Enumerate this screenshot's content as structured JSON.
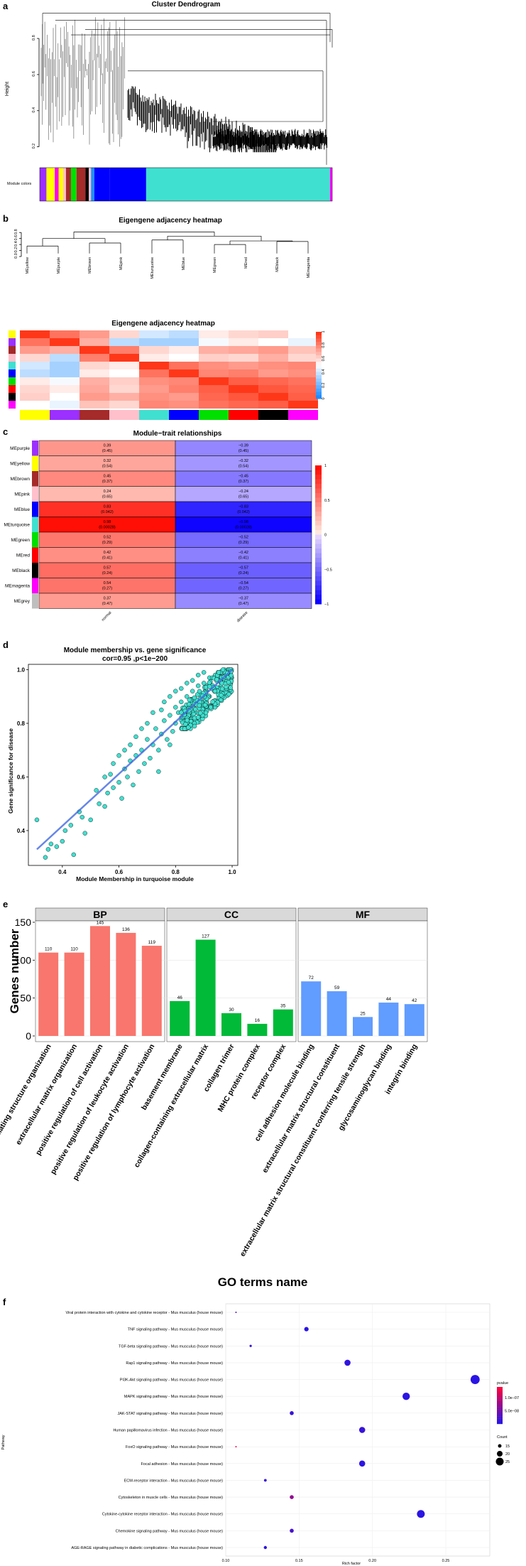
{
  "figure": {
    "panels": [
      "a",
      "b",
      "c",
      "d",
      "e",
      "f"
    ]
  },
  "chart_data": [
    {
      "id": "a",
      "type": "dendrogram",
      "title": "Cluster Dendrogram",
      "ylabel": "Height",
      "ylim": [
        0.1,
        0.95
      ],
      "yticks": [
        "0.2",
        "0.4",
        "0.6",
        "0.8"
      ],
      "ytick_values": [
        0.2,
        0.4,
        0.6,
        0.8
      ],
      "color_bar_label": "Module colors",
      "module_segments": [
        {
          "color": "#9b30ff",
          "weight": 1.2
        },
        {
          "color": "#ffff00",
          "weight": 1.5
        },
        {
          "color": "#ff00ff",
          "weight": 0.7
        },
        {
          "color": "#ffff00",
          "weight": 0.8
        },
        {
          "color": "#ffc0cb",
          "weight": 0.5
        },
        {
          "color": "#a52a2a",
          "weight": 0.9
        },
        {
          "color": "#00e000",
          "weight": 1.0
        },
        {
          "color": "#a52a2a",
          "weight": 1.6
        },
        {
          "color": "#000000",
          "weight": 0.6
        },
        {
          "color": "#ffc0cb",
          "weight": 0.4
        },
        {
          "color": "#1e90ff",
          "weight": 0.6
        },
        {
          "color": "#0000ff",
          "weight": 2.8
        },
        {
          "color": "#0000ff",
          "weight": 6.5
        },
        {
          "color": "#40e0d0",
          "weight": 33.0
        },
        {
          "color": "#ff00ff",
          "weight": 0.4
        }
      ]
    },
    {
      "id": "b",
      "type": "dendrogram+heatmap",
      "title": "Eigengene adjacency heatmap",
      "heatmap_title": "Eigengene adjacency heatmap",
      "yticks": [
        "0.0",
        "0.2",
        "0.4",
        "0.6",
        "0.8"
      ],
      "ytick_values": [
        0,
        0.2,
        0.4,
        0.6,
        0.8
      ],
      "leaves": [
        "MEyellow",
        "MEpurple",
        "MEbrown",
        "MEpink",
        "MEturquoise",
        "MEblue",
        "MEgreen",
        "MEred",
        "MEblack",
        "MEmagenta"
      ],
      "leaf_colors": [
        "#ffff00",
        "#9b30ff",
        "#a52a2a",
        "#ffc0cb",
        "#40e0d0",
        "#0000ff",
        "#00e000",
        "#ff0000",
        "#000000",
        "#ff00ff"
      ],
      "legend_ticks": [
        "1",
        "0.8",
        "0.6",
        "0.4",
        "0.2",
        "0"
      ],
      "legend_tick_values": [
        1,
        0.8,
        0.6,
        0.4,
        0.2,
        0
      ],
      "matrix": [
        [
          1.0,
          0.85,
          0.75,
          0.6,
          0.4,
          0.35,
          0.55,
          0.6,
          0.62,
          0.5
        ],
        [
          0.85,
          1.0,
          0.7,
          0.35,
          0.3,
          0.3,
          0.48,
          0.55,
          0.5,
          0.45
        ],
        [
          0.75,
          0.7,
          1.0,
          0.82,
          0.6,
          0.55,
          0.7,
          0.72,
          0.75,
          0.65
        ],
        [
          0.6,
          0.35,
          0.82,
          1.0,
          0.55,
          0.5,
          0.62,
          0.6,
          0.7,
          0.6
        ],
        [
          0.4,
          0.3,
          0.6,
          0.55,
          1.0,
          0.85,
          0.78,
          0.75,
          0.78,
          0.8
        ],
        [
          0.35,
          0.3,
          0.55,
          0.5,
          0.85,
          1.0,
          0.8,
          0.82,
          0.75,
          0.78
        ],
        [
          0.55,
          0.48,
          0.7,
          0.62,
          0.78,
          0.8,
          1.0,
          0.9,
          0.88,
          0.85
        ],
        [
          0.6,
          0.55,
          0.72,
          0.6,
          0.75,
          0.82,
          0.9,
          1.0,
          0.92,
          0.88
        ],
        [
          0.62,
          0.5,
          0.75,
          0.7,
          0.78,
          0.75,
          0.88,
          0.92,
          1.0,
          0.9
        ],
        [
          0.5,
          0.45,
          0.65,
          0.6,
          0.8,
          0.78,
          0.85,
          0.88,
          0.9,
          1.0
        ]
      ]
    },
    {
      "id": "c",
      "type": "heatmap",
      "title": "Module−trait relationships",
      "columns": [
        "normal",
        "disease"
      ],
      "legend_ticks": [
        "1",
        "0.5",
        "0",
        "−0.5",
        "−1"
      ],
      "legend_tick_values": [
        1,
        0.5,
        0,
        -0.5,
        -1
      ],
      "rows": [
        {
          "name": "MEpurple",
          "color": "#9b30ff",
          "values": [
            0.39,
            -0.39
          ],
          "cells": [
            "0.39\n(0.45)",
            "−0.39\n(0.45)"
          ]
        },
        {
          "name": "MEyellow",
          "color": "#ffff00",
          "values": [
            0.32,
            -0.32
          ],
          "cells": [
            "0.32\n(0.54)",
            "−0.32\n(0.54)"
          ]
        },
        {
          "name": "MEbrown",
          "color": "#a52a2a",
          "values": [
            0.45,
            -0.45
          ],
          "cells": [
            "0.45\n(0.37)",
            "−0.45\n(0.37)"
          ]
        },
        {
          "name": "MEpink",
          "color": "#ffc0cb",
          "values": [
            0.24,
            -0.24
          ],
          "cells": [
            "0.24\n(0.65)",
            "−0.24\n(0.65)"
          ]
        },
        {
          "name": "MEblue",
          "color": "#0000ff",
          "values": [
            0.83,
            -0.83
          ],
          "cells": [
            "0.83\n(0.042)",
            "−0.83\n(0.042)"
          ]
        },
        {
          "name": "MEturquoise",
          "color": "#40e0d0",
          "values": [
            0.98,
            -0.98
          ],
          "cells": [
            "0.98\n(0.00028)",
            "−0.98\n(0.00028)"
          ]
        },
        {
          "name": "MEgreen",
          "color": "#00e000",
          "values": [
            0.52,
            -0.52
          ],
          "cells": [
            "0.52\n(0.29)",
            "−0.52\n(0.29)"
          ]
        },
        {
          "name": "MEred",
          "color": "#ff0000",
          "values": [
            0.42,
            -0.42
          ],
          "cells": [
            "0.42\n(0.41)",
            "−0.42\n(0.41)"
          ]
        },
        {
          "name": "MEblack",
          "color": "#000000",
          "values": [
            0.57,
            -0.57
          ],
          "cells": [
            "0.57\n(0.24)",
            "−0.57\n(0.24)"
          ]
        },
        {
          "name": "MEmagenta",
          "color": "#ff00ff",
          "values": [
            0.54,
            -0.54
          ],
          "cells": [
            "0.54\n(0.27)",
            "−0.54\n(0.27)"
          ]
        },
        {
          "name": "MEgrey",
          "color": "#bebebe",
          "values": [
            0.37,
            -0.37
          ],
          "cells": [
            "0.37\n(0.47)",
            "−0.37\n(0.47)"
          ]
        }
      ]
    },
    {
      "id": "d",
      "type": "scatter",
      "title": "Module membership vs. gene significance",
      "subtitle": "cor=0.95 ,p<1e−200",
      "xlabel": "Module Membership in turquoise module",
      "ylabel": "Gene significance for  disease",
      "xlim": [
        0.28,
        1.02
      ],
      "ylim": [
        0.27,
        1.02
      ],
      "xticks": [
        "0.4",
        "0.6",
        "0.8",
        "1.0"
      ],
      "xtick_values": [
        0.4,
        0.6,
        0.8,
        1.0
      ],
      "yticks": [
        "0.4",
        "0.6",
        "0.8",
        "1.0"
      ],
      "ytick_values": [
        0.4,
        0.6,
        0.8,
        1.0
      ],
      "point_color": "#40e0d0",
      "trend_color": "#4169e1",
      "trend": {
        "x": [
          0.31,
          1.0
        ],
        "y": [
          0.33,
          1.0
        ]
      },
      "points": [
        [
          0.31,
          0.44
        ],
        [
          0.34,
          0.3
        ],
        [
          0.35,
          0.33
        ],
        [
          0.36,
          0.35
        ],
        [
          0.38,
          0.34
        ],
        [
          0.4,
          0.36
        ],
        [
          0.41,
          0.4
        ],
        [
          0.43,
          0.42
        ],
        [
          0.44,
          0.31
        ],
        [
          0.46,
          0.47
        ],
        [
          0.47,
          0.45
        ],
        [
          0.48,
          0.39
        ],
        [
          0.5,
          0.44
        ],
        [
          0.52,
          0.55
        ],
        [
          0.53,
          0.5
        ],
        [
          0.55,
          0.49
        ],
        [
          0.56,
          0.54
        ],
        [
          0.57,
          0.61
        ],
        [
          0.58,
          0.56
        ],
        [
          0.6,
          0.58
        ],
        [
          0.61,
          0.52
        ],
        [
          0.62,
          0.63
        ],
        [
          0.63,
          0.6
        ],
        [
          0.64,
          0.66
        ],
        [
          0.65,
          0.57
        ],
        [
          0.66,
          0.68
        ],
        [
          0.67,
          0.62
        ],
        [
          0.68,
          0.7
        ],
        [
          0.69,
          0.65
        ],
        [
          0.7,
          0.74
        ],
        [
          0.71,
          0.67
        ],
        [
          0.72,
          0.72
        ],
        [
          0.73,
          0.78
        ],
        [
          0.74,
          0.7
        ],
        [
          0.75,
          0.76
        ],
        [
          0.76,
          0.81
        ],
        [
          0.77,
          0.74
        ],
        [
          0.78,
          0.83
        ],
        [
          0.79,
          0.77
        ],
        [
          0.8,
          0.86
        ],
        [
          0.8,
          0.8
        ],
        [
          0.81,
          0.84
        ],
        [
          0.82,
          0.88
        ],
        [
          0.83,
          0.82
        ],
        [
          0.84,
          0.9
        ],
        [
          0.85,
          0.86
        ],
        [
          0.86,
          0.92
        ],
        [
          0.87,
          0.88
        ],
        [
          0.88,
          0.94
        ],
        [
          0.89,
          0.9
        ],
        [
          0.9,
          0.95
        ],
        [
          0.91,
          0.92
        ],
        [
          0.92,
          0.97
        ],
        [
          0.93,
          0.94
        ],
        [
          0.94,
          0.98
        ],
        [
          0.95,
          0.96
        ],
        [
          0.96,
          0.99
        ],
        [
          0.97,
          0.97
        ],
        [
          0.98,
          0.99
        ],
        [
          0.99,
          0.98
        ],
        [
          0.75,
          0.85
        ],
        [
          0.78,
          0.9
        ],
        [
          0.82,
          0.93
        ],
        [
          0.86,
          0.96
        ],
        [
          0.88,
          0.98
        ],
        [
          0.7,
          0.8
        ],
        [
          0.66,
          0.75
        ],
        [
          0.62,
          0.7
        ],
        [
          0.58,
          0.65
        ],
        [
          0.72,
          0.84
        ],
        [
          0.84,
          0.95
        ],
        [
          0.9,
          0.99
        ],
        [
          0.8,
          0.92
        ],
        [
          0.76,
          0.88
        ],
        [
          0.68,
          0.78
        ],
        [
          0.64,
          0.72
        ],
        [
          0.6,
          0.68
        ],
        [
          0.55,
          0.6
        ],
        [
          0.74,
          0.62
        ],
        [
          0.78,
          0.72
        ],
        [
          0.83,
          0.78
        ],
        [
          0.87,
          0.84
        ],
        [
          0.91,
          0.88
        ],
        [
          0.94,
          0.92
        ],
        [
          0.96,
          0.94
        ],
        [
          0.97,
          0.96
        ],
        [
          0.93,
          0.97
        ],
        [
          0.95,
          0.99
        ],
        [
          0.92,
          0.9
        ],
        [
          0.89,
          0.86
        ]
      ]
    },
    {
      "id": "e",
      "type": "bar",
      "ylabel": "Genes number",
      "xlabel": "GO terms name",
      "ylim": [
        0,
        150
      ],
      "yticks": [
        "0",
        "50",
        "100",
        "150"
      ],
      "ytick_values": [
        0,
        50,
        100,
        150
      ],
      "facets": [
        {
          "name": "BP",
          "color": "#f8766d",
          "categories": [
            "external encapsulating structure organization",
            "extracellular matrix organization",
            "positive regulation of cell activation",
            "positive regulation of leukocyte activation",
            "positive regulation of lymphocyte activation"
          ],
          "values": [
            110,
            110,
            145,
            136,
            119
          ]
        },
        {
          "name": "CC",
          "color": "#00ba38",
          "categories": [
            "basement membrane",
            "collagen-containing extracellular matrix",
            "collagen trimer",
            "MHC protein complex",
            "receptor complex"
          ],
          "values": [
            46,
            127,
            30,
            16,
            35
          ]
        },
        {
          "name": "MF",
          "color": "#619cff",
          "categories": [
            "cell adhesion molecule binding",
            "extracellular matrix structural constituent",
            "extracellular matrix structural constituent conferring tensile strength",
            "glycosaminoglycan binding",
            "integrin binding"
          ],
          "values": [
            72,
            59,
            25,
            44,
            42
          ]
        }
      ]
    },
    {
      "id": "f",
      "type": "scatter",
      "xlabel": "Rich factor",
      "ylabel": "Pathway",
      "xlim": [
        0.1,
        0.28
      ],
      "xticks": [
        "0.10",
        "0.15",
        "0.20",
        "0.25"
      ],
      "xtick_values": [
        0.1,
        0.15,
        0.2,
        0.25
      ],
      "legend_pvalue_title": "pvalue",
      "legend_pvalue_ticks": [
        "1.0e−07",
        "5.0e−08"
      ],
      "legend_pvalue_values": [
        1e-07,
        5e-08
      ],
      "pvalue_range": [
        0,
        1.4e-07
      ],
      "legend_count_title": "Count",
      "legend_count_values": [
        15,
        20,
        25
      ],
      "pathways": [
        {
          "name": "Viral protein interaction with cytokine and cytokine receptor - Mus musculus (house mouse)",
          "rich": 0.107,
          "count": 10,
          "pvalue": 2e-08
        },
        {
          "name": "TNF signaling pathway - Mus musculus (house mouse)",
          "rich": 0.155,
          "count": 17,
          "pvalue": 1e-09
        },
        {
          "name": "TGF-beta signaling pathway - Mus musculus (house mouse)",
          "rich": 0.117,
          "count": 12,
          "pvalue": 5e-09
        },
        {
          "name": "Rap1 signaling pathway - Mus musculus (house mouse)",
          "rich": 0.183,
          "count": 21,
          "pvalue": 5e-09
        },
        {
          "name": "PI3K-Akt signaling pathway - Mus musculus (house mouse)",
          "rich": 0.27,
          "count": 28,
          "pvalue": 1e-09
        },
        {
          "name": "MAPK signaling pathway - Mus musculus (house mouse)",
          "rich": 0.223,
          "count": 24,
          "pvalue": 2e-09
        },
        {
          "name": "JAK-STAT signaling pathway - Mus musculus (house mouse)",
          "rich": 0.145,
          "count": 16,
          "pvalue": 1e-08
        },
        {
          "name": "Human papillomavirus infection - Mus musculus (house mouse)",
          "rich": 0.193,
          "count": 21,
          "pvalue": 1e-08
        },
        {
          "name": "FoxO signaling pathway - Mus musculus (house mouse)",
          "rich": 0.107,
          "count": 10,
          "pvalue": 1.3e-07
        },
        {
          "name": "Focal adhesion - Mus musculus (house mouse)",
          "rich": 0.193,
          "count": 21,
          "pvalue": 3e-09
        },
        {
          "name": "ECM-receptor interaction - Mus musculus (house mouse)",
          "rich": 0.127,
          "count": 13,
          "pvalue": 1e-08
        },
        {
          "name": "Cytoskeleton in muscle cells - Mus musculus (house mouse)",
          "rich": 0.145,
          "count": 16,
          "pvalue": 7e-08
        },
        {
          "name": "Cytokine-cytokine receptor interaction - Mus musculus (house mouse)",
          "rich": 0.233,
          "count": 25,
          "pvalue": 2e-09
        },
        {
          "name": "Chemokine signaling pathway - Mus musculus (house mouse)",
          "rich": 0.145,
          "count": 16,
          "pvalue": 2e-08
        },
        {
          "name": "AGE-RAGE signaling pathway in diabetic complications - Mus musculus (house mouse)",
          "rich": 0.127,
          "count": 14,
          "pvalue": 3e-09
        }
      ]
    }
  ]
}
